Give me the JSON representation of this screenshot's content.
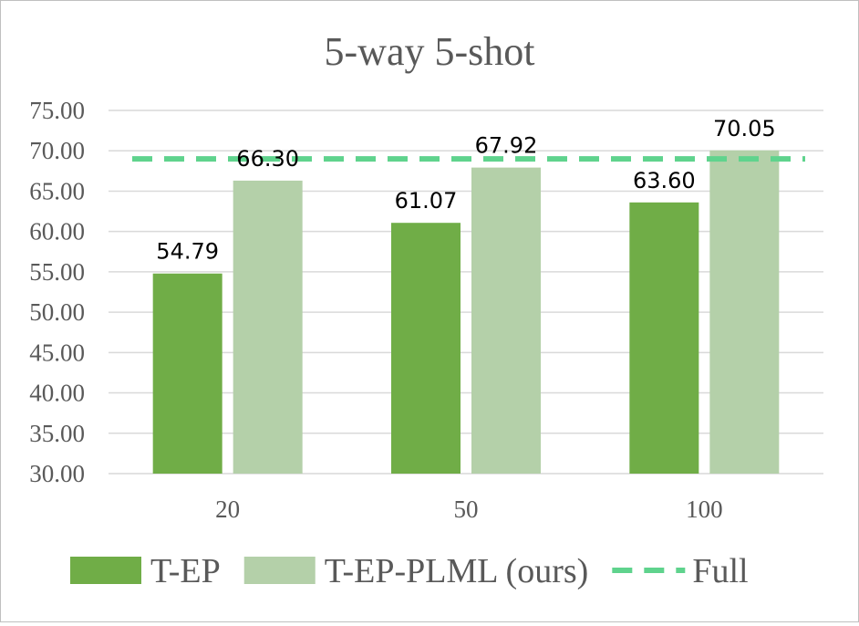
{
  "chart_data": {
    "type": "bar",
    "title": "5-way 5-shot",
    "categories": [
      "20",
      "50",
      "100"
    ],
    "series": [
      {
        "name": "T-EP",
        "values": [
          54.79,
          61.07,
          63.6
        ],
        "color": "#70ad47"
      },
      {
        "name": "T-EP-PLML (ours)",
        "values": [
          66.3,
          67.92,
          70.05
        ],
        "color": "#b4d0a9"
      }
    ],
    "reference_lines": [
      {
        "name": "Full",
        "value": 69.0,
        "style": "dashed",
        "color": "#5fd38d"
      }
    ],
    "data_labels": {
      "T-EP": [
        "54.79",
        "61.07",
        "63.60"
      ],
      "T-EP-PLML (ours)": [
        "66.30",
        "67.92",
        "70.05"
      ]
    },
    "ylim": [
      30,
      75
    ],
    "yticks": [
      "30.00",
      "35.00",
      "40.00",
      "45.00",
      "50.00",
      "55.00",
      "60.00",
      "65.00",
      "70.00",
      "75.00"
    ],
    "xlabel": "",
    "ylabel": "",
    "grid": true,
    "legend_position": "bottom"
  }
}
